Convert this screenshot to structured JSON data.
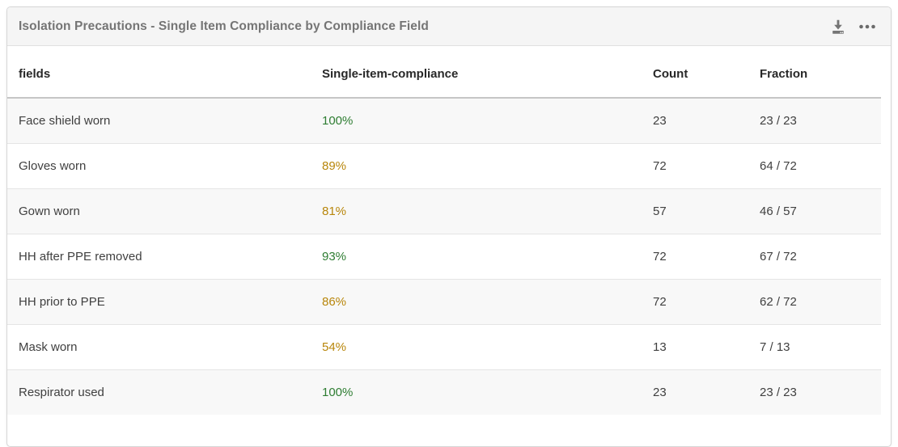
{
  "card": {
    "title": "Isolation Precautions - Single Item Compliance by Compliance Field",
    "actions": {
      "download_label": "Download",
      "more_label": "More options"
    }
  },
  "table": {
    "columns": [
      "fields",
      "Single-item-compliance",
      "Count",
      "Fraction"
    ],
    "rows": [
      {
        "field": "Face shield worn",
        "compliance": "100%",
        "status": "good",
        "count": "23",
        "fraction": "23 / 23"
      },
      {
        "field": "Gloves worn",
        "compliance": "89%",
        "status": "warn",
        "count": "72",
        "fraction": "64 / 72"
      },
      {
        "field": "Gown worn",
        "compliance": "81%",
        "status": "warn",
        "count": "57",
        "fraction": "46 / 57"
      },
      {
        "field": "HH after PPE removed",
        "compliance": "93%",
        "status": "good",
        "count": "72",
        "fraction": "67 / 72"
      },
      {
        "field": "HH prior to PPE",
        "compliance": "86%",
        "status": "warn",
        "count": "72",
        "fraction": "62 / 72"
      },
      {
        "field": "Mask worn",
        "compliance": "54%",
        "status": "warn",
        "count": "13",
        "fraction": "7 / 13"
      },
      {
        "field": "Respirator used",
        "compliance": "100%",
        "status": "good",
        "count": "23",
        "fraction": "23 / 23"
      }
    ]
  },
  "colors": {
    "good": "#2e7d32",
    "warn": "#b8860b",
    "title_text": "#757575",
    "header_text": "#282828",
    "body_text": "#404040",
    "stripe_bg": "#f8f8f8",
    "card_header_bg": "#f5f5f5",
    "icon_gray": "#757575"
  }
}
